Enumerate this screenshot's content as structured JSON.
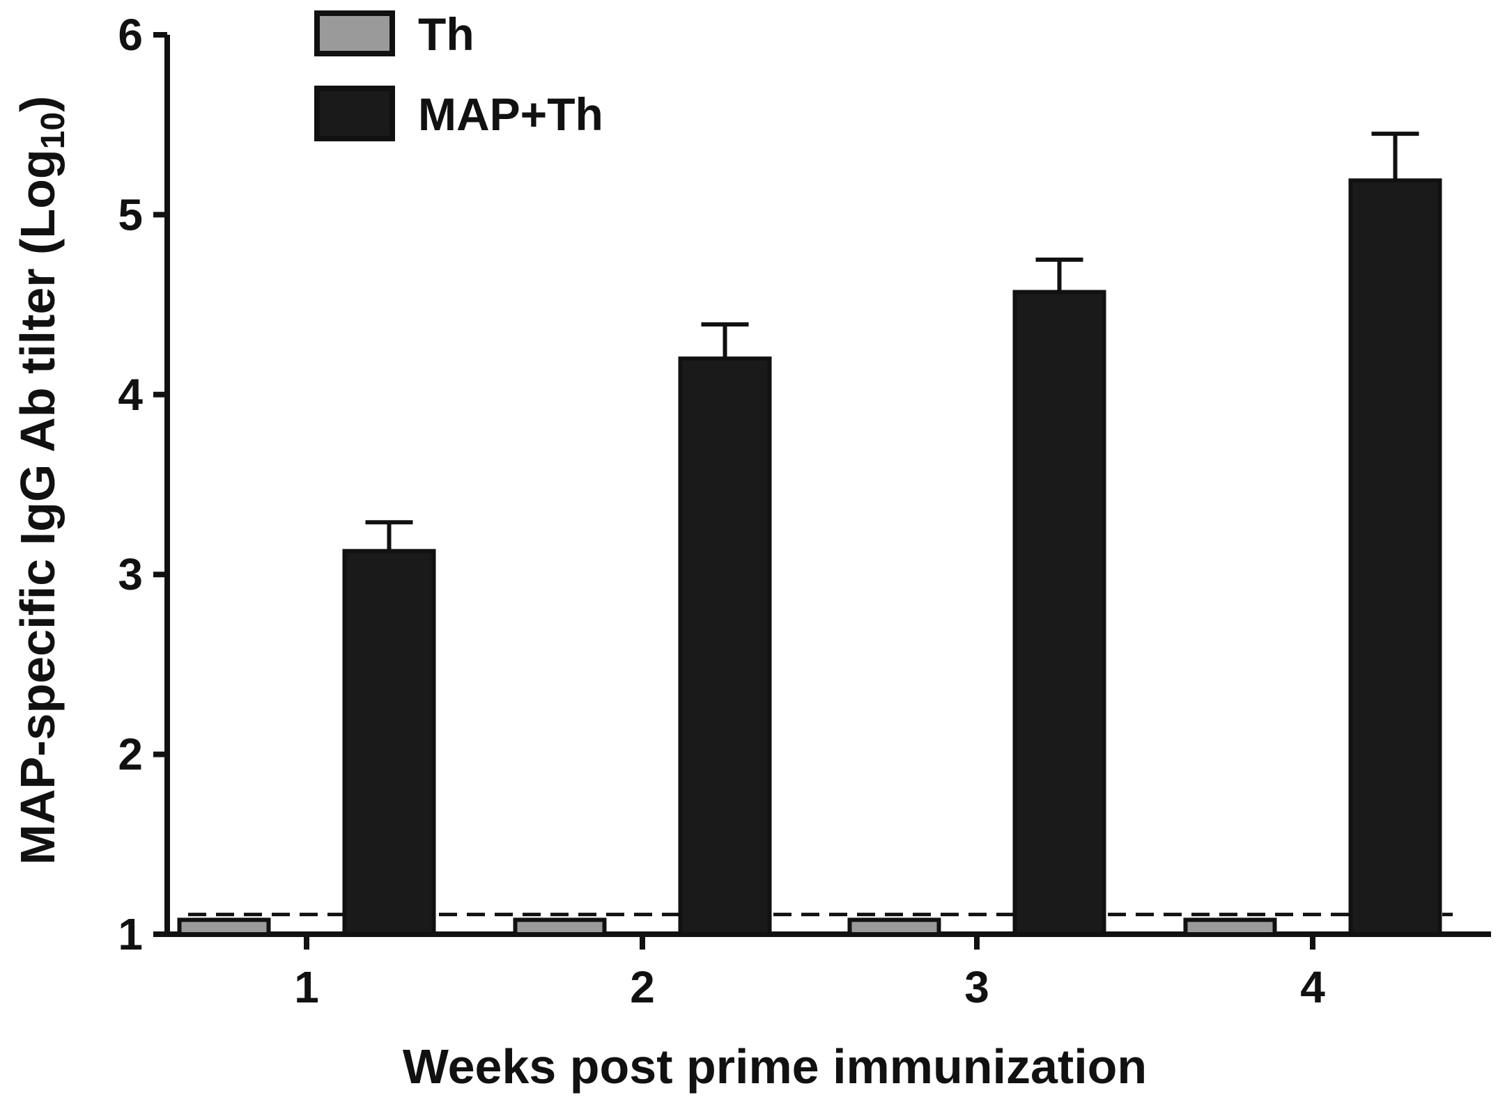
{
  "chart_data": {
    "type": "bar",
    "xlabel": "Weeks post prime immunization",
    "ylabel": "MAP-specific IgG Ab tilter (Log",
    "ylabel_subscript": "10",
    "ylabel_close": ")",
    "categories": [
      "1",
      "2",
      "3",
      "4"
    ],
    "ylim": [
      1,
      6
    ],
    "yticks": [
      "1",
      "2",
      "3",
      "4",
      "5",
      "6"
    ],
    "series": [
      {
        "name": "Th",
        "values": [
          1.08,
          1.08,
          1.08,
          1.08
        ],
        "errors": [
          0,
          0,
          0,
          0
        ],
        "color": "#9a9a9a"
      },
      {
        "name": "MAP+Th",
        "values": [
          3.13,
          4.2,
          4.57,
          5.19
        ],
        "errors": [
          0.16,
          0.19,
          0.18,
          0.26
        ],
        "color": "#1a1a1a"
      }
    ],
    "reference_line": {
      "value": 1.11,
      "style": "dashed"
    },
    "legend_position": "top-left",
    "grid": false
  }
}
